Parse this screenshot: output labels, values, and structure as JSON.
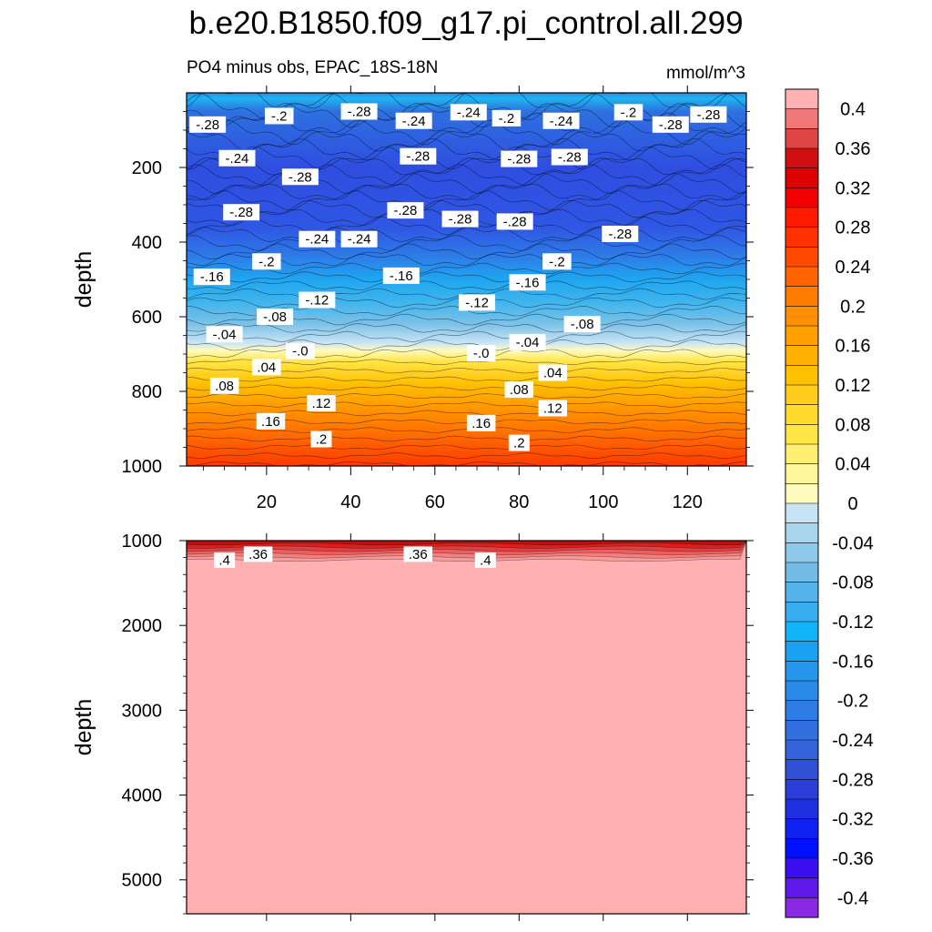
{
  "title": "b.e20.B1850.f09_g17.pi_control.all.299",
  "subtitle": "PO4 minus obs, EPAC_18S-18N",
  "units": "mmol/m^3",
  "chart_data": [
    {
      "type": "contour",
      "panel": "upper",
      "xlabel": "",
      "ylabel": "depth",
      "xlim": [
        1,
        134
      ],
      "ylim": [
        1000,
        0
      ],
      "xticks": [
        20,
        40,
        60,
        80,
        100,
        120
      ],
      "yticks": [
        200,
        400,
        600,
        800,
        1000
      ],
      "contour_labels": [
        {
          "text": "-.28",
          "x": 6,
          "depth": 85
        },
        {
          "text": "-.2",
          "x": 23,
          "depth": 62
        },
        {
          "text": "-.28",
          "x": 42,
          "depth": 50
        },
        {
          "text": "-.24",
          "x": 55,
          "depth": 75
        },
        {
          "text": "-.24",
          "x": 68,
          "depth": 52
        },
        {
          "text": "-.2",
          "x": 77,
          "depth": 68
        },
        {
          "text": "-.24",
          "x": 90,
          "depth": 75
        },
        {
          "text": "-.2",
          "x": 106,
          "depth": 52
        },
        {
          "text": "-.28",
          "x": 116,
          "depth": 85
        },
        {
          "text": "-.28",
          "x": 125,
          "depth": 58
        },
        {
          "text": "-.24",
          "x": 13,
          "depth": 175
        },
        {
          "text": "-.28",
          "x": 28,
          "depth": 225
        },
        {
          "text": "-.28",
          "x": 56,
          "depth": 170
        },
        {
          "text": "-.28",
          "x": 80,
          "depth": 177
        },
        {
          "text": "-.28",
          "x": 92,
          "depth": 172
        },
        {
          "text": "-.28",
          "x": 14,
          "depth": 320
        },
        {
          "text": "-.28",
          "x": 53,
          "depth": 315
        },
        {
          "text": "-.28",
          "x": 66,
          "depth": 338
        },
        {
          "text": "-.28",
          "x": 79,
          "depth": 345
        },
        {
          "text": "-.28",
          "x": 104,
          "depth": 378
        },
        {
          "text": "-.24",
          "x": 32,
          "depth": 392
        },
        {
          "text": "-.24",
          "x": 42,
          "depth": 392
        },
        {
          "text": "-.2",
          "x": 20,
          "depth": 452
        },
        {
          "text": "-.2",
          "x": 89,
          "depth": 452
        },
        {
          "text": "-.16",
          "x": 7,
          "depth": 493
        },
        {
          "text": "-.16",
          "x": 52,
          "depth": 490
        },
        {
          "text": "-.16",
          "x": 82,
          "depth": 508
        },
        {
          "text": "-.12",
          "x": 32,
          "depth": 555
        },
        {
          "text": "-.12",
          "x": 70,
          "depth": 562
        },
        {
          "text": "-.08",
          "x": 22,
          "depth": 600
        },
        {
          "text": "-.08",
          "x": 95,
          "depth": 620
        },
        {
          "text": "-.04",
          "x": 10,
          "depth": 647
        },
        {
          "text": "-.04",
          "x": 82,
          "depth": 668
        },
        {
          "text": "-.0",
          "x": 28,
          "depth": 692
        },
        {
          "text": "-.0",
          "x": 71,
          "depth": 698
        },
        {
          "text": ".04",
          "x": 20,
          "depth": 735
        },
        {
          "text": ".04",
          "x": 88,
          "depth": 750
        },
        {
          "text": ".08",
          "x": 10,
          "depth": 785
        },
        {
          "text": ".08",
          "x": 80,
          "depth": 795
        },
        {
          "text": ".12",
          "x": 33,
          "depth": 832
        },
        {
          "text": ".12",
          "x": 88,
          "depth": 845
        },
        {
          "text": ".16",
          "x": 21,
          "depth": 880
        },
        {
          "text": ".16",
          "x": 71,
          "depth": 885
        },
        {
          "text": ".2",
          "x": 33,
          "depth": 928
        },
        {
          "text": ".2",
          "x": 80,
          "depth": 938
        }
      ]
    },
    {
      "type": "contour",
      "panel": "lower",
      "xlabel": "",
      "ylabel": "depth",
      "xlim": [
        1,
        134
      ],
      "ylim": [
        5400,
        1000
      ],
      "yticks": [
        1000,
        2000,
        3000,
        4000,
        5000
      ],
      "contour_labels": [
        {
          "text": ".4",
          "x": 10,
          "depth": 1230
        },
        {
          "text": ".36",
          "x": 18,
          "depth": 1160
        },
        {
          "text": ".36",
          "x": 56,
          "depth": 1160
        },
        {
          "text": ".4",
          "x": 72,
          "depth": 1230
        }
      ]
    }
  ],
  "colorbar": {
    "labels": [
      "0.4",
      "0.36",
      "0.32",
      "0.28",
      "0.24",
      "0.2",
      "0.16",
      "0.12",
      "0.08",
      "0.04",
      "0",
      "-0.04",
      "-0.08",
      "-0.12",
      "-0.16",
      "-0.2",
      "-0.24",
      "-0.28",
      "-0.32",
      "-0.36",
      "-0.4"
    ],
    "colors": [
      "#ffb2b2",
      "#f07878",
      "#e04545",
      "#d01010",
      "#e00000",
      "#f00000",
      "#ff1a00",
      "#ff3300",
      "#ff4a00",
      "#ff6400",
      "#ff7c00",
      "#ff8f00",
      "#ffa000",
      "#ffb000",
      "#ffc000",
      "#ffcd1a",
      "#ffd92e",
      "#ffe545",
      "#ffef70",
      "#fff59a",
      "#fffbbf",
      "#c8e4f4",
      "#a8d6ef",
      "#8fc9ea",
      "#72bde6",
      "#55b3ec",
      "#36aef0",
      "#12b4f8",
      "#1aa2f0",
      "#2496ec",
      "#2a8ae8",
      "#2e7de4",
      "#3070e0",
      "#3262dc",
      "#3050d8",
      "#2b3fd8",
      "#2030e0",
      "#1020f0",
      "#0010ff",
      "#3a10f0",
      "#5e18e8",
      "#8a28e4"
    ]
  }
}
